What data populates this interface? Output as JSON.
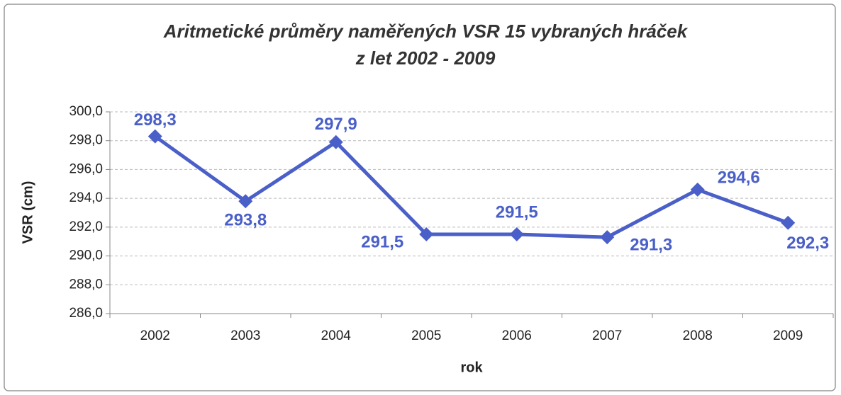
{
  "chart_data": {
    "type": "line",
    "title": [
      "Aritmetické průměry naměřených VSR 15 vybraných hráček",
      "z let 2002 - 2009"
    ],
    "x_label": "rok",
    "y_label": "VSR (cm)",
    "categories": [
      "2002",
      "2003",
      "2004",
      "2005",
      "2006",
      "2007",
      "2008",
      "2009"
    ],
    "values": [
      298.3,
      293.8,
      297.9,
      291.5,
      291.5,
      291.3,
      294.6,
      292.3
    ],
    "value_labels": [
      "298,3",
      "293,8",
      "297,9",
      "291,5",
      "291,5",
      "291,3",
      "294,6",
      "292,3"
    ],
    "color": "#4a5fc8",
    "ylim": [
      286,
      300
    ],
    "yticks": [
      {
        "value": 286,
        "label": "286,0"
      },
      {
        "value": 288,
        "label": "288,0"
      },
      {
        "value": 290,
        "label": "290,0"
      },
      {
        "value": 292,
        "label": "292,0"
      },
      {
        "value": 294,
        "label": "294,0"
      },
      {
        "value": 296,
        "label": "296,0"
      },
      {
        "value": 298,
        "label": "298,0"
      },
      {
        "value": 300,
        "label": "300,0"
      }
    ],
    "grid": true
  }
}
